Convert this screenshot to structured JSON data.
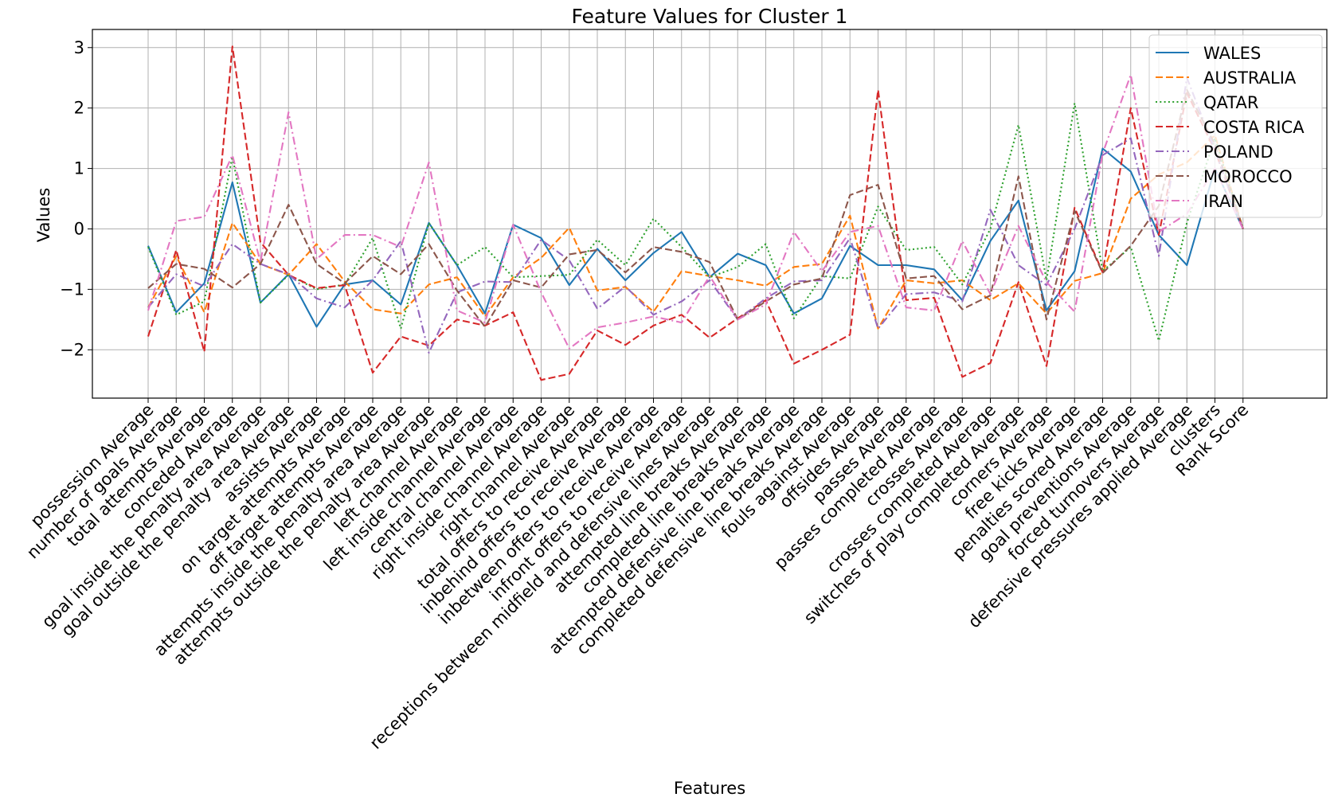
{
  "chart_data": {
    "type": "line",
    "title": "Feature Values for Cluster 1",
    "xlabel": "Features",
    "ylabel": "Values",
    "ylim": [
      -2.8,
      3.3
    ],
    "yticks": [
      -2,
      -1,
      0,
      1,
      2,
      3
    ],
    "ytick_labels": [
      "−2",
      "−1",
      "0",
      "1",
      "2",
      "3"
    ],
    "grid": true,
    "legend_position": "top-right",
    "categories": [
      "possession Average",
      "number of goals Average",
      "total attempts Average",
      "conceded Average",
      "goal inside the penalty area Average",
      "goal outside the penalty area Average",
      "assists Average",
      "on target attempts Average",
      "off target attempts Average",
      "attempts inside the penalty area  Average",
      "attempts outside the penalty area  Average",
      "left channel Average",
      "left inside channel Average",
      "central channel Average",
      "right inside channel Average",
      "right channel Average",
      "total offers to receive Average",
      "inbehind offers to receive Average",
      "inbetween offers to receive Average",
      "infront offers to receive Average",
      "receptions between midfield and defensive lines Average",
      "attempted line breaks Average",
      "completed line breaks Average",
      "attempted defensive line breaks Average",
      "completed defensive line breaks Average",
      "fouls against Average",
      "offsides Average",
      "passes Average",
      "passes completed Average",
      "crosses Average",
      "crosses completed Average",
      "switches of play completed Average",
      "corners Average",
      "free kicks Average",
      "penalties scored Average",
      "goal preventions Average",
      "forced turnovers Average",
      "defensive pressures applied Average",
      "clusters",
      "Rank Score"
    ],
    "series": [
      {
        "name": "WALES",
        "color": "#1f77b4",
        "dash": "solid",
        "values": [
          -0.28,
          -1.38,
          -0.9,
          0.77,
          -1.22,
          -0.75,
          -1.62,
          -0.92,
          -0.85,
          -1.25,
          0.1,
          -0.6,
          -1.4,
          0.07,
          -0.15,
          -0.93,
          -0.33,
          -0.85,
          -0.4,
          -0.05,
          -0.8,
          -0.41,
          -0.6,
          -1.4,
          -1.15,
          -0.28,
          -0.6,
          -0.6,
          -0.67,
          -1.18,
          -0.2,
          0.47,
          -1.35,
          -0.7,
          1.33,
          0.95,
          -0.1,
          -0.6,
          1.0,
          0.0
        ]
      },
      {
        "name": "AUSTRALIA",
        "color": "#ff7f0e",
        "dash": "dashed",
        "values": [
          -1.3,
          -0.45,
          -1.38,
          0.1,
          -0.58,
          -0.76,
          -0.25,
          -0.87,
          -1.33,
          -1.4,
          -0.92,
          -0.8,
          -1.45,
          -0.8,
          -0.48,
          0.02,
          -1.02,
          -0.96,
          -1.37,
          -0.7,
          -0.78,
          -0.85,
          -0.94,
          -0.63,
          -0.58,
          0.22,
          -1.65,
          -0.85,
          -0.9,
          -0.85,
          -1.18,
          -0.9,
          -1.4,
          -0.86,
          -0.73,
          0.5,
          0.9,
          1.1,
          1.55,
          0.0
        ]
      },
      {
        "name": "QATAR",
        "color": "#2ca02c",
        "dash": "dotted",
        "values": [
          -0.3,
          -1.42,
          -1.2,
          1.2,
          -1.22,
          -0.76,
          -1.0,
          -0.92,
          -0.15,
          -1.65,
          0.1,
          -0.6,
          -0.3,
          -0.8,
          -0.78,
          -0.76,
          -0.18,
          -0.6,
          0.17,
          -0.3,
          -0.8,
          -0.63,
          -0.25,
          -1.48,
          -0.78,
          -0.82,
          0.37,
          -0.35,
          -0.3,
          -0.92,
          0.0,
          1.72,
          -0.85,
          2.08,
          -0.7,
          -0.3,
          -1.85,
          0.1,
          1.5,
          0.0
        ]
      },
      {
        "name": "COSTA RICA",
        "color": "#d62728",
        "dash": "dashed",
        "values": [
          -1.78,
          -0.35,
          -2.03,
          3.02,
          -0.22,
          -0.76,
          -0.98,
          -0.93,
          -2.38,
          -1.78,
          -1.93,
          -1.5,
          -1.6,
          -1.38,
          -2.5,
          -2.4,
          -1.68,
          -1.92,
          -1.6,
          -1.42,
          -1.8,
          -1.48,
          -1.18,
          -2.23,
          -2.0,
          -1.75,
          2.3,
          -1.18,
          -1.14,
          -2.45,
          -2.22,
          -0.88,
          -2.27,
          0.35,
          -0.72,
          2.0,
          -0.1,
          2.25,
          1.3,
          0.0
        ]
      },
      {
        "name": "POLAND",
        "color": "#9467bd",
        "dash": "dashdot",
        "values": [
          -1.3,
          -0.75,
          -0.95,
          -0.25,
          -0.58,
          -0.75,
          -1.15,
          -1.3,
          -0.85,
          -0.2,
          -2.05,
          -1.05,
          -0.87,
          -0.88,
          -0.18,
          -0.52,
          -1.32,
          -0.95,
          -1.42,
          -1.2,
          -0.85,
          -1.5,
          -1.15,
          -0.87,
          -0.85,
          -0.15,
          -1.65,
          -1.08,
          -1.05,
          -1.2,
          0.32,
          -0.6,
          -0.93,
          0.0,
          1.22,
          1.5,
          -0.45,
          2.5,
          1.3,
          0.0
        ]
      },
      {
        "name": "MOROCCO",
        "color": "#8c564b",
        "dash": "dashed",
        "values": [
          -0.98,
          -0.58,
          -0.66,
          -0.97,
          -0.58,
          0.4,
          -0.58,
          -0.9,
          -0.45,
          -0.75,
          -0.25,
          -1.02,
          -1.62,
          -0.85,
          -0.97,
          -0.42,
          -0.35,
          -0.72,
          -0.3,
          -0.38,
          -0.55,
          -1.5,
          -1.2,
          -0.92,
          -0.82,
          0.56,
          0.73,
          -0.82,
          -0.78,
          -1.33,
          -1.1,
          0.87,
          -1.5,
          0.3,
          -0.73,
          -0.28,
          0.38,
          2.3,
          1.4,
          0.0
        ]
      },
      {
        "name": "IRAN",
        "color": "#e377c2",
        "dash": "dashdot",
        "values": [
          -1.35,
          0.13,
          0.2,
          1.22,
          -0.55,
          1.93,
          -0.5,
          -0.1,
          -0.1,
          -0.3,
          1.1,
          -1.35,
          -1.55,
          0.07,
          -1.05,
          -1.98,
          -1.63,
          -1.55,
          -1.45,
          -1.55,
          -0.78,
          -1.5,
          -1.25,
          -0.05,
          -0.7,
          -0.05,
          0.05,
          -1.3,
          -1.35,
          -0.2,
          -1.08,
          0.05,
          -0.88,
          -1.37,
          1.25,
          2.55,
          -0.05,
          0.25,
          1.0,
          0.0
        ]
      }
    ]
  }
}
